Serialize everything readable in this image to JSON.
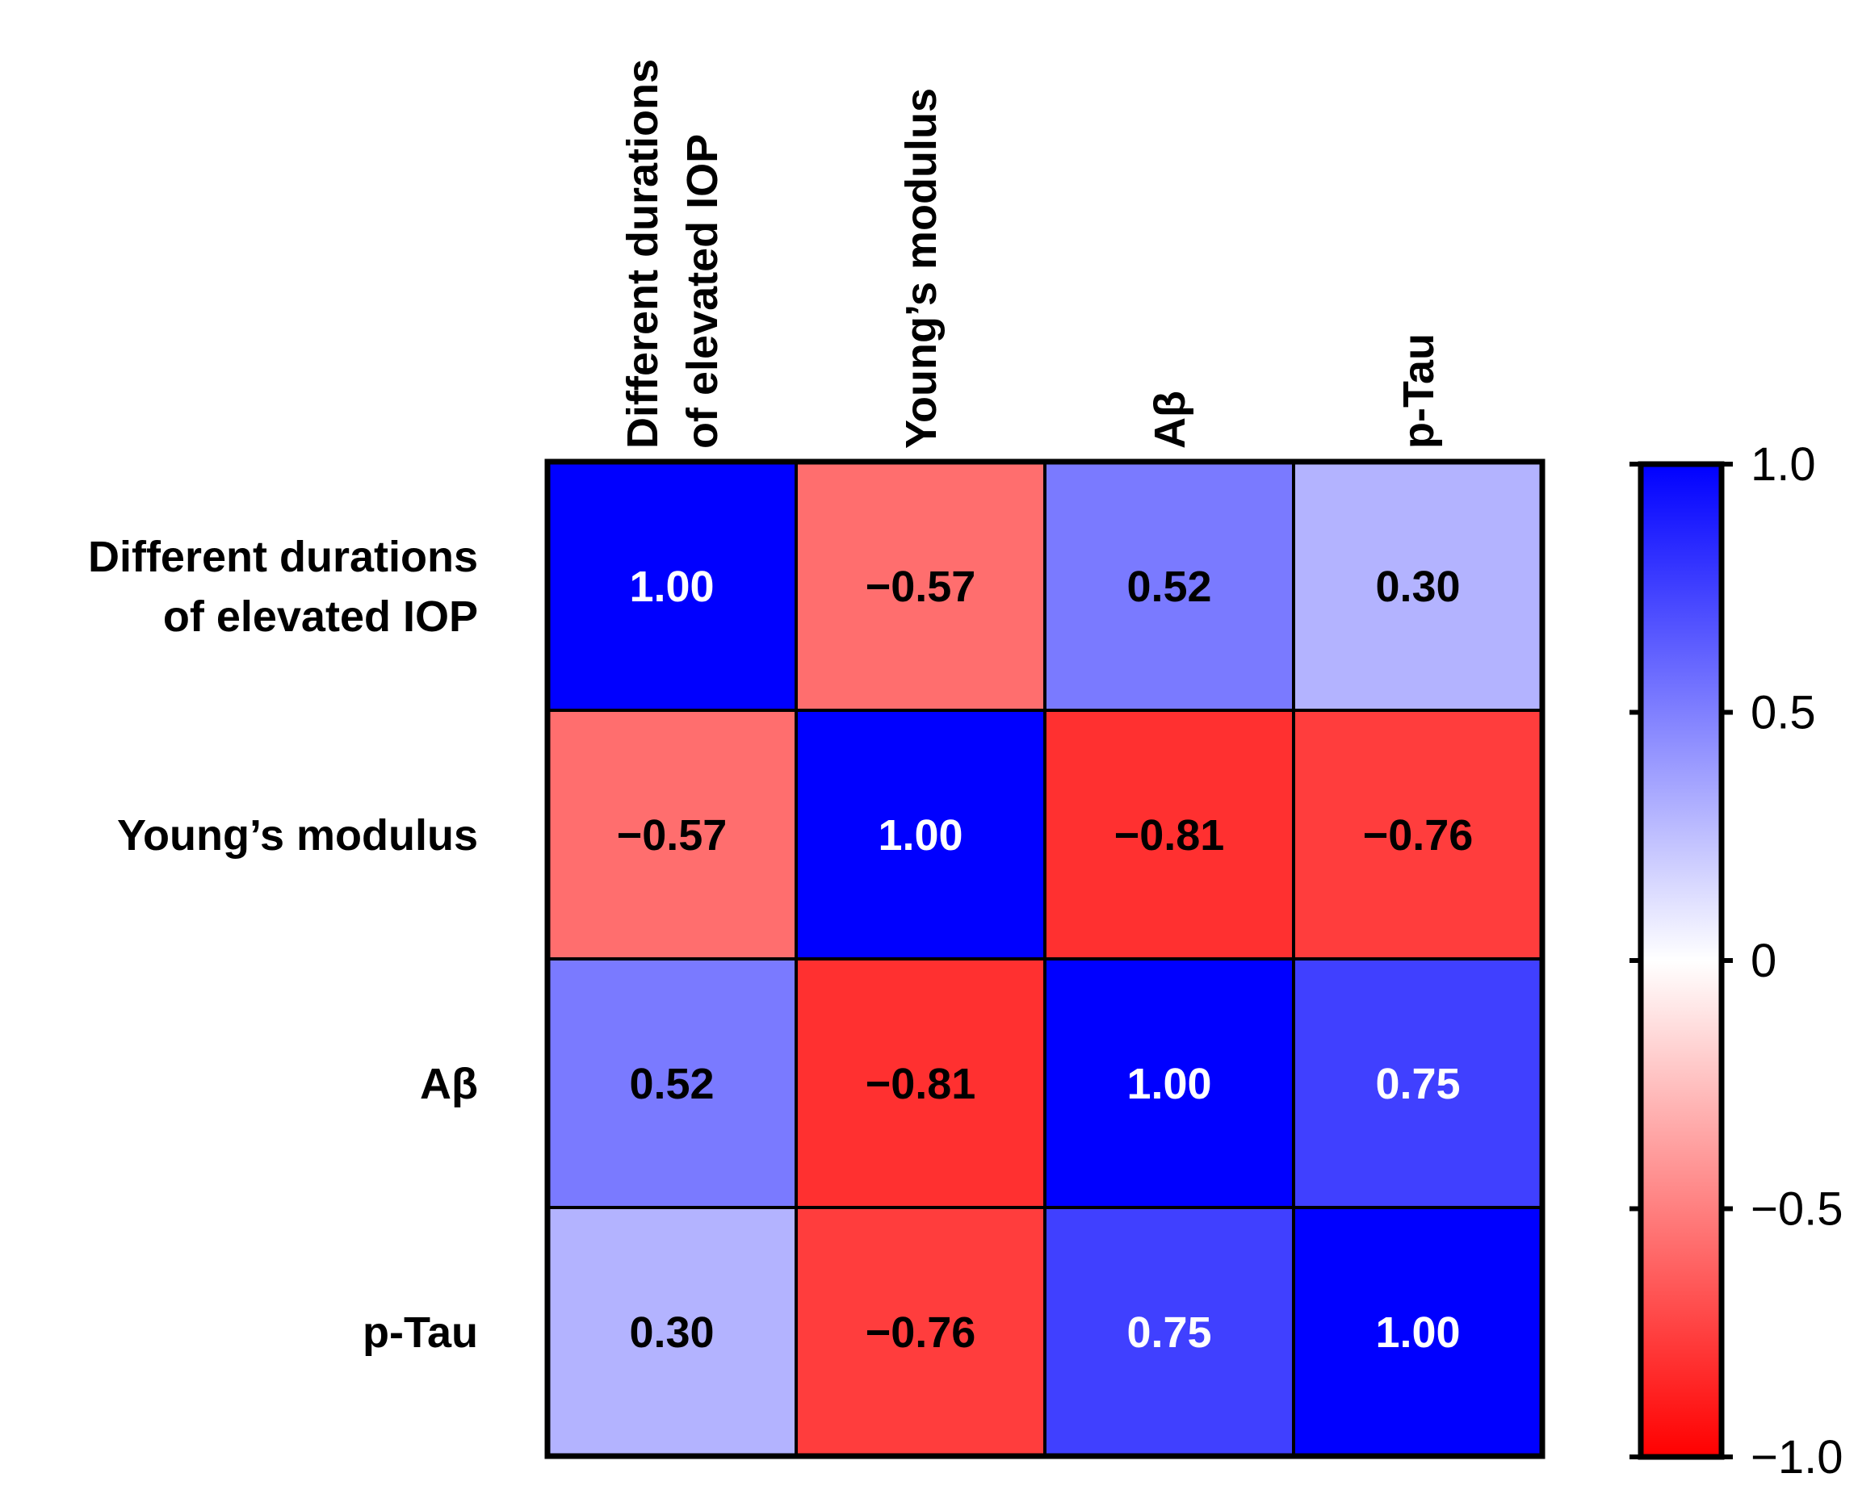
{
  "chart_data": {
    "type": "heatmap",
    "rows": [
      "Different durations of elevated IOP",
      "Young’s modulus",
      "Aβ",
      "p-Tau"
    ],
    "row_label_lines": [
      [
        "Different durations",
        "of elevated IOP"
      ],
      [
        "Young’s modulus"
      ],
      [
        "Aβ"
      ],
      [
        "p-Tau"
      ]
    ],
    "columns": [
      "Different durations of elevated IOP",
      "Young’s modulus",
      "Aβ",
      "p-Tau"
    ],
    "column_label_lines": [
      [
        "Different durations",
        "of elevated IOP"
      ],
      [
        "Young’s modulus"
      ],
      [
        "Aβ"
      ],
      [
        "p-Tau"
      ]
    ],
    "values": [
      [
        1.0,
        -0.57,
        0.52,
        0.3
      ],
      [
        -0.57,
        1.0,
        -0.81,
        -0.76
      ],
      [
        0.52,
        -0.81,
        1.0,
        0.75
      ],
      [
        0.3,
        -0.76,
        0.75,
        1.0
      ]
    ],
    "value_labels": [
      [
        "1.00",
        "−0.57",
        "0.52",
        "0.30"
      ],
      [
        "−0.57",
        "1.00",
        "−0.81",
        "−0.76"
      ],
      [
        "0.52",
        "−0.81",
        "1.00",
        "0.75"
      ],
      [
        "0.30",
        "−0.76",
        "0.75",
        "1.00"
      ]
    ],
    "colorscale": {
      "min": -1.0,
      "max": 1.0,
      "colors": {
        "negative": "#ff0000",
        "zero": "#ffffff",
        "positive": "#0000ff"
      },
      "ticks": [
        1.0,
        0.5,
        0,
        -0.5,
        -1.0
      ],
      "tick_labels": [
        "1.0",
        "0.5",
        "0",
        "−0.5",
        "−1.0"
      ],
      "placement": "right"
    }
  }
}
